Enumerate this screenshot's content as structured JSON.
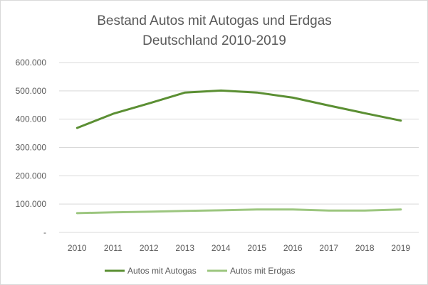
{
  "chart_data": {
    "type": "line",
    "title": [
      "Bestand Autos mit Autogas und Erdgas",
      "Deutschland 2010-2019"
    ],
    "xlabel": "",
    "ylabel": "",
    "x": [
      "2010",
      "2011",
      "2012",
      "2013",
      "2014",
      "2015",
      "2016",
      "2017",
      "2018",
      "2019"
    ],
    "ylim": [
      0,
      600000
    ],
    "y_ticks": [
      {
        "value": 0,
        "label": "-"
      },
      {
        "value": 100000,
        "label": "100.000"
      },
      {
        "value": 200000,
        "label": "200.000"
      },
      {
        "value": 300000,
        "label": "300.000"
      },
      {
        "value": 400000,
        "label": "400.000"
      },
      {
        "value": 500000,
        "label": "500.000"
      },
      {
        "value": 600000,
        "label": "600.000"
      }
    ],
    "grid": true,
    "legend_position": "bottom",
    "series": [
      {
        "name": "Autos mit Autogas",
        "color": "#5b8f33",
        "values": [
          369000,
          419000,
          456000,
          494000,
          501000,
          494000,
          476000,
          448000,
          421000,
          395000
        ]
      },
      {
        "name": "Autos mit Erdgas",
        "color": "#9cc67f",
        "values": [
          68000,
          71000,
          73000,
          76000,
          78000,
          81000,
          81000,
          77000,
          77000,
          81000
        ]
      }
    ]
  }
}
